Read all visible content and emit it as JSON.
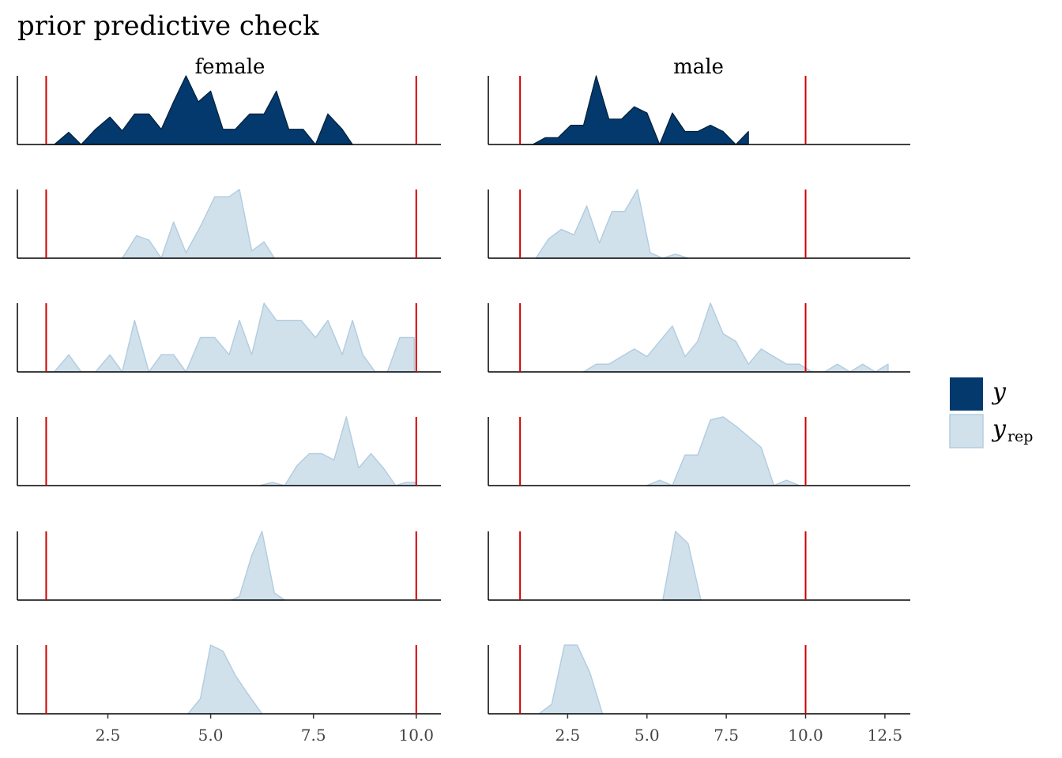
{
  "chart_data": {
    "type": "area",
    "title": "prior predictive check",
    "xlabel": "",
    "ylabel": "",
    "reference_lines": [
      1,
      10
    ],
    "reference_line_color": "#d00000",
    "colors": {
      "y": "#03396c",
      "y_rep": "#d1e1ec",
      "y_rep_line": "#b3cde0"
    },
    "legend": {
      "y_label": "y",
      "yrep_label": "y",
      "yrep_sub": "rep"
    },
    "facets": [
      {
        "name": "female",
        "xlim": [
          0.3,
          10.6
        ],
        "ticks": [
          2.5,
          5.0,
          7.5,
          10.0
        ],
        "tick_labels": [
          "2.5",
          "5.0",
          "7.5",
          "10.0"
        ],
        "rows": [
          {
            "series": "y",
            "x": [
              0.9,
              1.2,
              1.55,
              1.85,
              2.2,
              2.55,
              2.85,
              3.15,
              3.5,
              3.8,
              4.1,
              4.4,
              4.7,
              5.0,
              5.3,
              5.6,
              5.95,
              6.3,
              6.6,
              6.9,
              7.25,
              7.55,
              7.85,
              8.2,
              8.45
            ],
            "y": [
              0,
              0,
              0.08,
              0,
              0.1,
              0.18,
              0.09,
              0.2,
              0.2,
              0.1,
              0.28,
              0.45,
              0.28,
              0.35,
              0.1,
              0.1,
              0.2,
              0.2,
              0.35,
              0.1,
              0.1,
              0,
              0.2,
              0.1,
              0
            ]
          },
          {
            "series": "y_rep",
            "x": [
              2.85,
              3.2,
              3.5,
              3.8,
              4.1,
              4.4,
              4.75,
              5.1,
              5.45,
              5.7,
              6.0,
              6.3,
              6.55
            ],
            "y": [
              0,
              0.25,
              0.2,
              0,
              0.4,
              0.06,
              0.35,
              0.68,
              0.68,
              0.76,
              0.08,
              0.18,
              0
            ],
            "max": 0.76
          },
          {
            "series": "y_rep",
            "x": [
              1.0,
              1.2,
              1.55,
              1.85,
              2.2,
              2.55,
              2.85,
              3.15,
              3.5,
              3.8,
              4.1,
              4.4,
              4.75,
              5.1,
              5.45,
              5.7,
              6.0,
              6.3,
              6.6,
              6.9,
              7.2,
              7.55,
              7.85,
              8.2,
              8.45,
              8.7,
              9.0,
              9.3,
              9.6,
              9.95
            ],
            "y": [
              0,
              0,
              0.1,
              0,
              0,
              0.1,
              0,
              0.3,
              0,
              0.1,
              0.1,
              0,
              0.2,
              0.2,
              0.1,
              0.3,
              0.1,
              0.4,
              0.3,
              0.3,
              0.3,
              0.2,
              0.3,
              0.1,
              0.3,
              0.1,
              0,
              0,
              0.2,
              0.2
            ]
          },
          {
            "series": "y_rep",
            "x": [
              6.2,
              6.5,
              6.8,
              7.1,
              7.4,
              7.7,
              8.0,
              8.3,
              8.6,
              8.9,
              9.2,
              9.5,
              9.75,
              10.0
            ],
            "y": [
              0,
              0.04,
              0,
              0.25,
              0.4,
              0.4,
              0.32,
              0.86,
              0.22,
              0.4,
              0.22,
              0,
              0.04,
              0.04
            ],
            "max": 0.86
          },
          {
            "series": "y_rep",
            "x": [
              5.5,
              5.7,
              6.0,
              6.25,
              6.55,
              6.8
            ],
            "y": [
              0,
              0.04,
              0.5,
              0.77,
              0.08,
              0
            ],
            "max": 0.77
          },
          {
            "series": "y_rep",
            "x": [
              4.45,
              4.75,
              5.0,
              5.3,
              5.6,
              5.9,
              6.25
            ],
            "y": [
              0,
              0.15,
              0.68,
              0.62,
              0.38,
              0.2,
              0
            ],
            "max": 0.68
          }
        ]
      },
      {
        "name": "male",
        "xlim": [
          0.0,
          13.3
        ],
        "ticks": [
          2.5,
          5.0,
          7.5,
          10.0,
          12.5
        ],
        "tick_labels": [
          "2.5",
          "5.0",
          "7.5",
          "10.0",
          "12.5"
        ],
        "rows": [
          {
            "series": "y",
            "x": [
              1.0,
              1.4,
              1.8,
              2.2,
              2.6,
              3.0,
              3.4,
              3.8,
              4.2,
              4.6,
              5.0,
              5.4,
              5.8,
              6.2,
              6.6,
              7.0,
              7.4,
              7.8,
              8.2
            ],
            "y": [
              0,
              0,
              0.1,
              0.1,
              0.28,
              0.28,
              1,
              0.37,
              0.37,
              0.55,
              0.46,
              0,
              0.46,
              0.19,
              0.19,
              0.28,
              0.19,
              0,
              0.19
            ]
          },
          {
            "series": "y_rep",
            "x": [
              1.5,
              1.9,
              2.3,
              2.7,
              3.1,
              3.5,
              3.9,
              4.3,
              4.7,
              5.1,
              5.5,
              5.9,
              6.3
            ],
            "y": [
              0,
              0.28,
              0.42,
              0.34,
              0.76,
              0.22,
              0.68,
              0.68,
              1.0,
              0.08,
              0,
              0.06,
              0
            ],
            "max": 1.0
          },
          {
            "series": "y_rep",
            "x": [
              3.0,
              3.4,
              3.8,
              4.2,
              4.6,
              5.0,
              5.4,
              5.8,
              6.2,
              6.6,
              7.0,
              7.4,
              7.8,
              8.2,
              8.6,
              9.0,
              9.4,
              9.8,
              10.2,
              10.6,
              11.0,
              11.4,
              11.8,
              12.2,
              12.6
            ],
            "y": [
              0,
              0.1,
              0.1,
              0.2,
              0.3,
              0.2,
              0.4,
              0.6,
              0.2,
              0.4,
              0.9,
              0.5,
              0.4,
              0.1,
              0.3,
              0.2,
              0.1,
              0.1,
              0,
              0,
              0.1,
              0,
              0.1,
              0,
              0.1
            ]
          },
          {
            "series": "y_rep",
            "x": [
              5.0,
              5.4,
              5.8,
              6.2,
              6.6,
              7.0,
              7.4,
              7.8,
              8.2,
              8.6,
              9.0,
              9.4,
              9.8
            ],
            "y": [
              0,
              0.07,
              0,
              0.4,
              0.4,
              0.86,
              0.9,
              0.78,
              0.64,
              0.5,
              0,
              0.07,
              0
            ],
            "max": 0.9
          },
          {
            "series": "y_rep",
            "x": [
              5.5,
              5.9,
              6.3,
              6.7
            ],
            "y": [
              0,
              0.9,
              0.74,
              0
            ],
            "max": 0.9
          },
          {
            "series": "y_rep",
            "x": [
              1.6,
              2.0,
              2.4,
              2.8,
              3.2,
              3.6
            ],
            "y": [
              0,
              0.14,
              1.0,
              1.0,
              0.6,
              0
            ],
            "max": 1.0
          }
        ]
      }
    ]
  }
}
